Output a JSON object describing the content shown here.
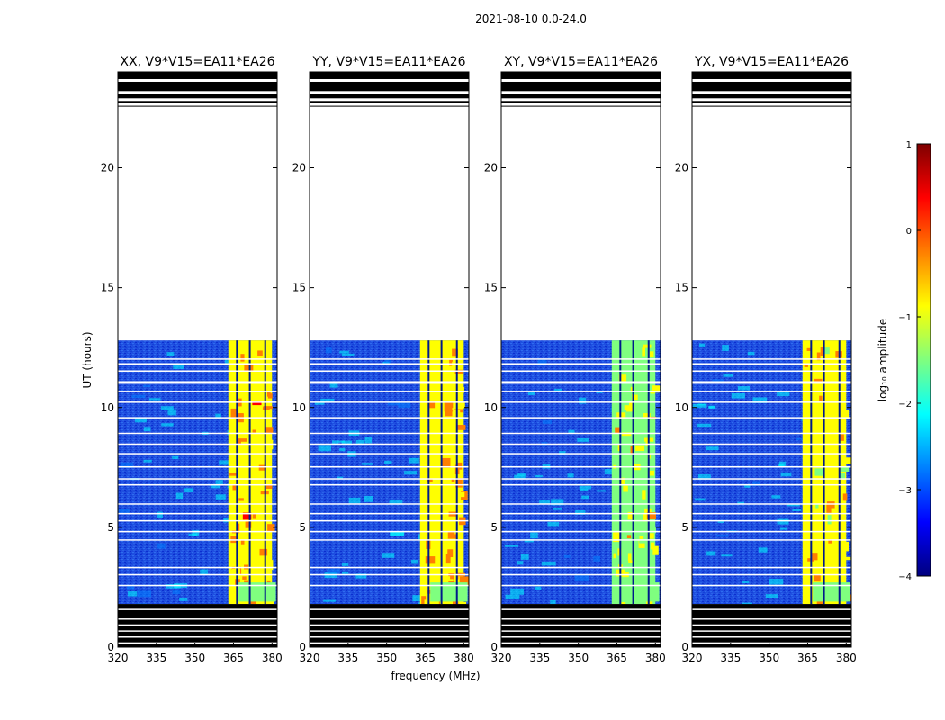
{
  "figure": {
    "suptitle": "2021-08-10 0.0-24.0"
  },
  "chart_data": {
    "type": "heatmap",
    "title": "2021-08-10 0.0-24.0",
    "xlabel": "frequency (MHz)",
    "ylabel": "UT (hours)",
    "xlim": [
      320,
      382
    ],
    "ylim": [
      0,
      24
    ],
    "x_ticks": [
      320,
      335,
      350,
      365,
      380
    ],
    "y_ticks": [
      0,
      5,
      10,
      15,
      20
    ],
    "panels": [
      {
        "title": "XX, V9*V15=EA11*EA26",
        "band_level": -0.6
      },
      {
        "title": "YY, V9*V15=EA11*EA26",
        "band_level": -0.7
      },
      {
        "title": "XY, V9*V15=EA11*EA26",
        "band_level": -1.2
      },
      {
        "title": "YX, V9*V15=EA11*EA26",
        "band_level": -1.0
      }
    ],
    "data_coverage_hours": [
      1.8,
      12.8
    ],
    "flagged_hours_top": [
      22.5,
      24.0
    ],
    "flagged_hours_bottom": [
      0.0,
      1.8
    ],
    "background_level": -3.0,
    "strong_band_mhz": [
      363,
      380
    ],
    "colorbar": {
      "label": "log₁₀ amplitude",
      "min": -4,
      "max": 1,
      "ticks": [
        1,
        0,
        -1,
        -2,
        -3,
        -4
      ],
      "tick_labels": [
        "1",
        "0",
        "−1",
        "−2",
        "−3",
        "−4"
      ],
      "colormap": [
        "#00007f",
        "#0000ff",
        "#007fff",
        "#00ffff",
        "#7fff7f",
        "#ffff00",
        "#ff7f00",
        "#ff0000",
        "#7f0000"
      ]
    }
  }
}
